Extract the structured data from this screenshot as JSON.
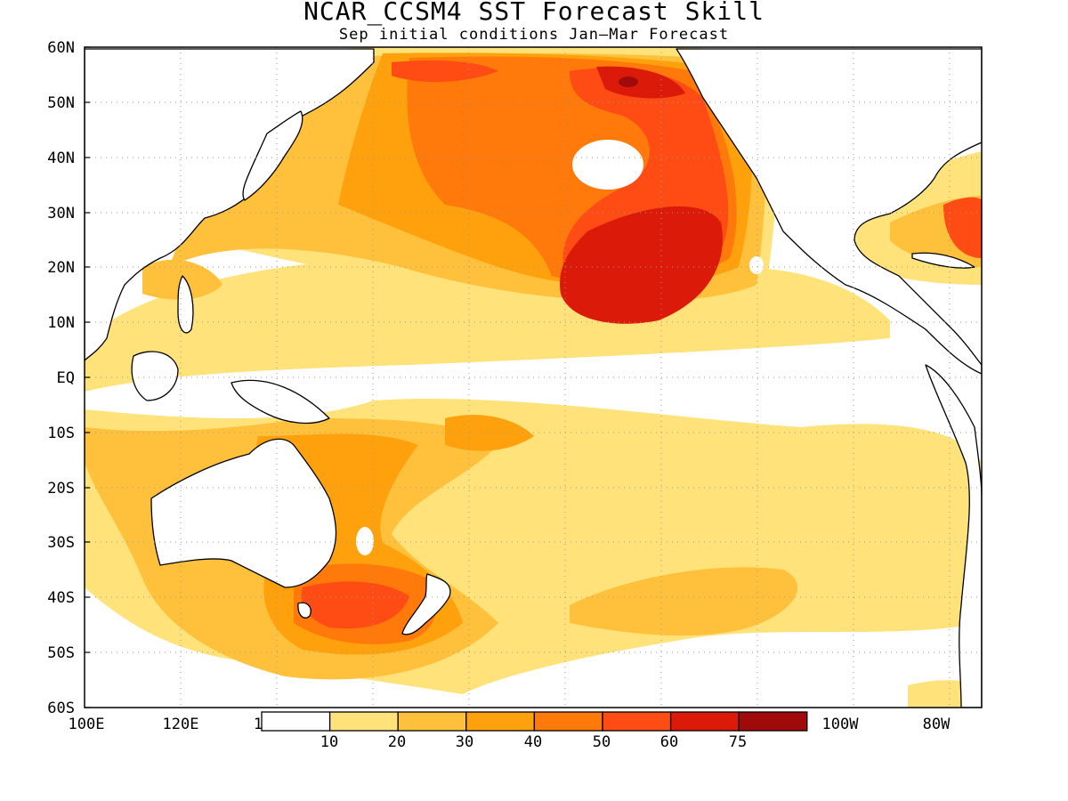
{
  "title": "NCAR_CCSM4 SST Forecast Skill",
  "subtitle": "Sep initial conditions  Jan—Mar Forecast",
  "y_ticks": [
    "60N",
    "50N",
    "40N",
    "30N",
    "20N",
    "10N",
    "EQ",
    "10S",
    "20S",
    "30S",
    "40S",
    "50S",
    "60S"
  ],
  "x_ticks": [
    "100E",
    "120E",
    "1",
    "100W",
    "80W"
  ],
  "colorbar": {
    "labels": [
      "10",
      "20",
      "30",
      "40",
      "50",
      "60",
      "75"
    ],
    "colors": [
      "#ffffff",
      "#ffe27a",
      "#ffc03c",
      "#ffa10c",
      "#ff7a0a",
      "#ff4b14",
      "#dc1a0a",
      "#a00a0a"
    ]
  },
  "palette": {
    "land_outline": "#000000",
    "grid": "#9a9a9a"
  }
}
